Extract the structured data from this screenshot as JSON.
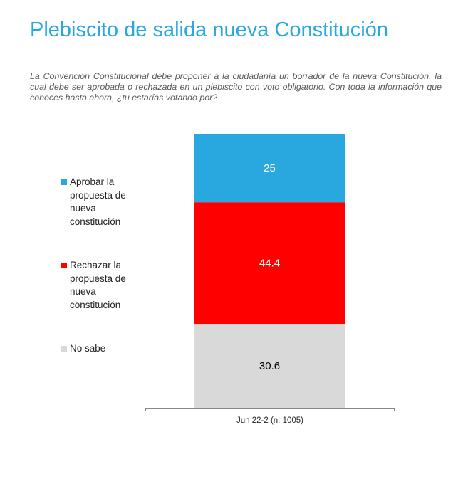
{
  "title": "Plebiscito de salida nueva Constitución",
  "subtitle": "La Convención Constitucional debe proponer a la ciudadanía un borrador de la nueva Constitución, la cual debe ser aprobada o rechazada en un plebiscito con voto obligatorio. Con toda la información que conoces hasta ahora, ¿tu estarías votando por?",
  "chart_data": {
    "type": "bar",
    "stacked": true,
    "categories": [
      "Jun 22-2 (n: 1005)"
    ],
    "series": [
      {
        "name": "Aprobar la propuesta de nueva constitución",
        "values": [
          25
        ],
        "color": "#29a8e0",
        "label": "25"
      },
      {
        "name": "Rechazar la propuesta de nueva constitución",
        "values": [
          44.4
        ],
        "color": "#ff0000",
        "label": "44.4"
      },
      {
        "name": "No sabe",
        "values": [
          30.6
        ],
        "color": "#d9d9d9",
        "label": "30.6"
      }
    ],
    "ylim": [
      0,
      100
    ],
    "grid": false,
    "legend": "left"
  }
}
